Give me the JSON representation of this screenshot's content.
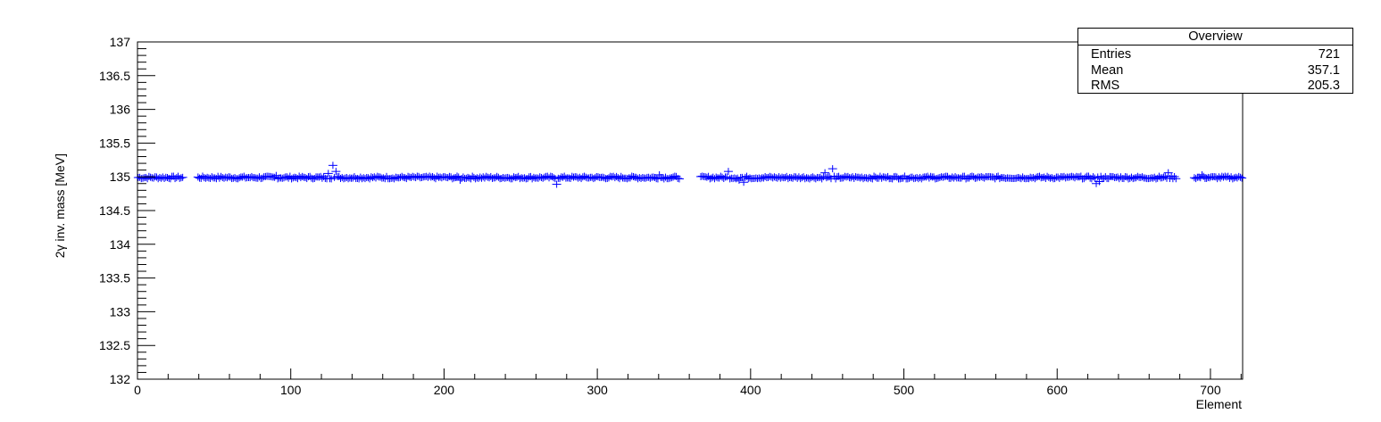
{
  "chart_data": {
    "type": "scatter",
    "title": "",
    "xlabel": "Element",
    "ylabel": "2γ inv. mass [MeV]",
    "xlim": [
      0,
      721
    ],
    "ylim": [
      132,
      137
    ],
    "x_ticks": [
      "0",
      "100",
      "200",
      "300",
      "400",
      "500",
      "600",
      "700"
    ],
    "y_ticks": [
      "132",
      "132.5",
      "133",
      "133.5",
      "134",
      "134.5",
      "135",
      "135.5",
      "136",
      "136.5",
      "137"
    ],
    "marker": "cross",
    "marker_color": "#0000ff",
    "grid": false,
    "legend": "none",
    "baseline_value": 134.99,
    "missing_ranges": [
      [
        30,
        38
      ],
      [
        354,
        366
      ],
      [
        678,
        688
      ]
    ],
    "outliers": [
      {
        "x": 90,
        "y": 135.02
      },
      {
        "x": 124,
        "y": 135.05
      },
      {
        "x": 127,
        "y": 135.17
      },
      {
        "x": 129,
        "y": 135.08
      },
      {
        "x": 210,
        "y": 134.95
      },
      {
        "x": 273,
        "y": 134.89
      },
      {
        "x": 340,
        "y": 135.03
      },
      {
        "x": 385,
        "y": 135.08
      },
      {
        "x": 392,
        "y": 134.95
      },
      {
        "x": 395,
        "y": 134.92
      },
      {
        "x": 448,
        "y": 135.06
      },
      {
        "x": 453,
        "y": 135.12
      },
      {
        "x": 455,
        "y": 134.97
      },
      {
        "x": 625,
        "y": 134.9
      },
      {
        "x": 627,
        "y": 134.93
      },
      {
        "x": 672,
        "y": 135.06
      },
      {
        "x": 694,
        "y": 135.03
      }
    ]
  },
  "stats": {
    "title": "Overview",
    "rows": [
      {
        "label": "Entries",
        "value": "721"
      },
      {
        "label": "Mean",
        "value": "357.1"
      },
      {
        "label": "RMS",
        "value": "205.3"
      }
    ]
  }
}
